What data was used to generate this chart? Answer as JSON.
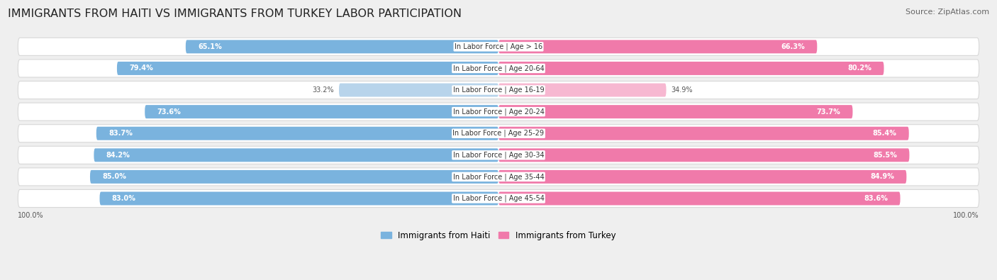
{
  "title": "IMMIGRANTS FROM HAITI VS IMMIGRANTS FROM TURKEY LABOR PARTICIPATION",
  "source": "Source: ZipAtlas.com",
  "categories": [
    "In Labor Force | Age > 16",
    "In Labor Force | Age 20-64",
    "In Labor Force | Age 16-19",
    "In Labor Force | Age 20-24",
    "In Labor Force | Age 25-29",
    "In Labor Force | Age 30-34",
    "In Labor Force | Age 35-44",
    "In Labor Force | Age 45-54"
  ],
  "haiti_values": [
    65.1,
    79.4,
    33.2,
    73.6,
    83.7,
    84.2,
    85.0,
    83.0
  ],
  "turkey_values": [
    66.3,
    80.2,
    34.9,
    73.7,
    85.4,
    85.5,
    84.9,
    83.6
  ],
  "haiti_color": "#7ab3de",
  "haiti_color_light": "#b8d4eb",
  "turkey_color": "#f07aaa",
  "turkey_color_light": "#f7b8d1",
  "max_value": 100.0,
  "background_color": "#efefef",
  "row_bg": "#ffffff",
  "row_border": "#d8d8d8",
  "title_fontsize": 11.5,
  "source_fontsize": 8,
  "label_fontsize": 7,
  "value_fontsize": 7,
  "legend_haiti": "Immigrants from Haiti",
  "legend_turkey": "Immigrants from Turkey"
}
